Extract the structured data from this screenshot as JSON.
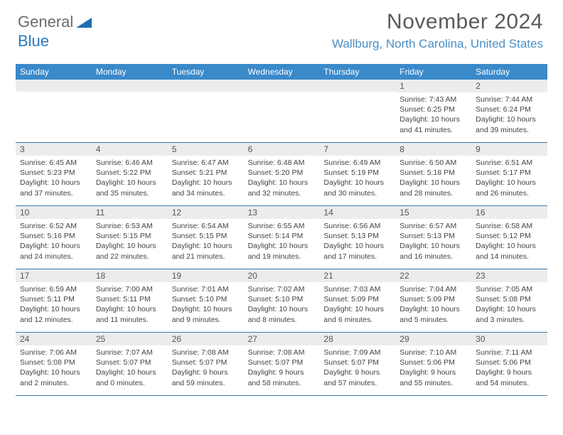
{
  "logo": {
    "part1": "General",
    "part2": "Blue"
  },
  "title": "November 2024",
  "location": "Wallburg, North Carolina, United States",
  "weekdays": [
    "Sunday",
    "Monday",
    "Tuesday",
    "Wednesday",
    "Thursday",
    "Friday",
    "Saturday"
  ],
  "colors": {
    "header_bg": "#3a89c9",
    "daynum_bg": "#ececec",
    "border": "#3a7aad",
    "location": "#4a8fc7"
  },
  "days": [
    [
      null,
      null,
      null,
      null,
      null,
      {
        "n": "1",
        "sunrise": "Sunrise: 7:43 AM",
        "sunset": "Sunset: 6:25 PM",
        "daylight": "Daylight: 10 hours and 41 minutes."
      },
      {
        "n": "2",
        "sunrise": "Sunrise: 7:44 AM",
        "sunset": "Sunset: 6:24 PM",
        "daylight": "Daylight: 10 hours and 39 minutes."
      }
    ],
    [
      {
        "n": "3",
        "sunrise": "Sunrise: 6:45 AM",
        "sunset": "Sunset: 5:23 PM",
        "daylight": "Daylight: 10 hours and 37 minutes."
      },
      {
        "n": "4",
        "sunrise": "Sunrise: 6:46 AM",
        "sunset": "Sunset: 5:22 PM",
        "daylight": "Daylight: 10 hours and 35 minutes."
      },
      {
        "n": "5",
        "sunrise": "Sunrise: 6:47 AM",
        "sunset": "Sunset: 5:21 PM",
        "daylight": "Daylight: 10 hours and 34 minutes."
      },
      {
        "n": "6",
        "sunrise": "Sunrise: 6:48 AM",
        "sunset": "Sunset: 5:20 PM",
        "daylight": "Daylight: 10 hours and 32 minutes."
      },
      {
        "n": "7",
        "sunrise": "Sunrise: 6:49 AM",
        "sunset": "Sunset: 5:19 PM",
        "daylight": "Daylight: 10 hours and 30 minutes."
      },
      {
        "n": "8",
        "sunrise": "Sunrise: 6:50 AM",
        "sunset": "Sunset: 5:18 PM",
        "daylight": "Daylight: 10 hours and 28 minutes."
      },
      {
        "n": "9",
        "sunrise": "Sunrise: 6:51 AM",
        "sunset": "Sunset: 5:17 PM",
        "daylight": "Daylight: 10 hours and 26 minutes."
      }
    ],
    [
      {
        "n": "10",
        "sunrise": "Sunrise: 6:52 AM",
        "sunset": "Sunset: 5:16 PM",
        "daylight": "Daylight: 10 hours and 24 minutes."
      },
      {
        "n": "11",
        "sunrise": "Sunrise: 6:53 AM",
        "sunset": "Sunset: 5:15 PM",
        "daylight": "Daylight: 10 hours and 22 minutes."
      },
      {
        "n": "12",
        "sunrise": "Sunrise: 6:54 AM",
        "sunset": "Sunset: 5:15 PM",
        "daylight": "Daylight: 10 hours and 21 minutes."
      },
      {
        "n": "13",
        "sunrise": "Sunrise: 6:55 AM",
        "sunset": "Sunset: 5:14 PM",
        "daylight": "Daylight: 10 hours and 19 minutes."
      },
      {
        "n": "14",
        "sunrise": "Sunrise: 6:56 AM",
        "sunset": "Sunset: 5:13 PM",
        "daylight": "Daylight: 10 hours and 17 minutes."
      },
      {
        "n": "15",
        "sunrise": "Sunrise: 6:57 AM",
        "sunset": "Sunset: 5:13 PM",
        "daylight": "Daylight: 10 hours and 16 minutes."
      },
      {
        "n": "16",
        "sunrise": "Sunrise: 6:58 AM",
        "sunset": "Sunset: 5:12 PM",
        "daylight": "Daylight: 10 hours and 14 minutes."
      }
    ],
    [
      {
        "n": "17",
        "sunrise": "Sunrise: 6:59 AM",
        "sunset": "Sunset: 5:11 PM",
        "daylight": "Daylight: 10 hours and 12 minutes."
      },
      {
        "n": "18",
        "sunrise": "Sunrise: 7:00 AM",
        "sunset": "Sunset: 5:11 PM",
        "daylight": "Daylight: 10 hours and 11 minutes."
      },
      {
        "n": "19",
        "sunrise": "Sunrise: 7:01 AM",
        "sunset": "Sunset: 5:10 PM",
        "daylight": "Daylight: 10 hours and 9 minutes."
      },
      {
        "n": "20",
        "sunrise": "Sunrise: 7:02 AM",
        "sunset": "Sunset: 5:10 PM",
        "daylight": "Daylight: 10 hours and 8 minutes."
      },
      {
        "n": "21",
        "sunrise": "Sunrise: 7:03 AM",
        "sunset": "Sunset: 5:09 PM",
        "daylight": "Daylight: 10 hours and 6 minutes."
      },
      {
        "n": "22",
        "sunrise": "Sunrise: 7:04 AM",
        "sunset": "Sunset: 5:09 PM",
        "daylight": "Daylight: 10 hours and 5 minutes."
      },
      {
        "n": "23",
        "sunrise": "Sunrise: 7:05 AM",
        "sunset": "Sunset: 5:08 PM",
        "daylight": "Daylight: 10 hours and 3 minutes."
      }
    ],
    [
      {
        "n": "24",
        "sunrise": "Sunrise: 7:06 AM",
        "sunset": "Sunset: 5:08 PM",
        "daylight": "Daylight: 10 hours and 2 minutes."
      },
      {
        "n": "25",
        "sunrise": "Sunrise: 7:07 AM",
        "sunset": "Sunset: 5:07 PM",
        "daylight": "Daylight: 10 hours and 0 minutes."
      },
      {
        "n": "26",
        "sunrise": "Sunrise: 7:08 AM",
        "sunset": "Sunset: 5:07 PM",
        "daylight": "Daylight: 9 hours and 59 minutes."
      },
      {
        "n": "27",
        "sunrise": "Sunrise: 7:08 AM",
        "sunset": "Sunset: 5:07 PM",
        "daylight": "Daylight: 9 hours and 58 minutes."
      },
      {
        "n": "28",
        "sunrise": "Sunrise: 7:09 AM",
        "sunset": "Sunset: 5:07 PM",
        "daylight": "Daylight: 9 hours and 57 minutes."
      },
      {
        "n": "29",
        "sunrise": "Sunrise: 7:10 AM",
        "sunset": "Sunset: 5:06 PM",
        "daylight": "Daylight: 9 hours and 55 minutes."
      },
      {
        "n": "30",
        "sunrise": "Sunrise: 7:11 AM",
        "sunset": "Sunset: 5:06 PM",
        "daylight": "Daylight: 9 hours and 54 minutes."
      }
    ]
  ]
}
